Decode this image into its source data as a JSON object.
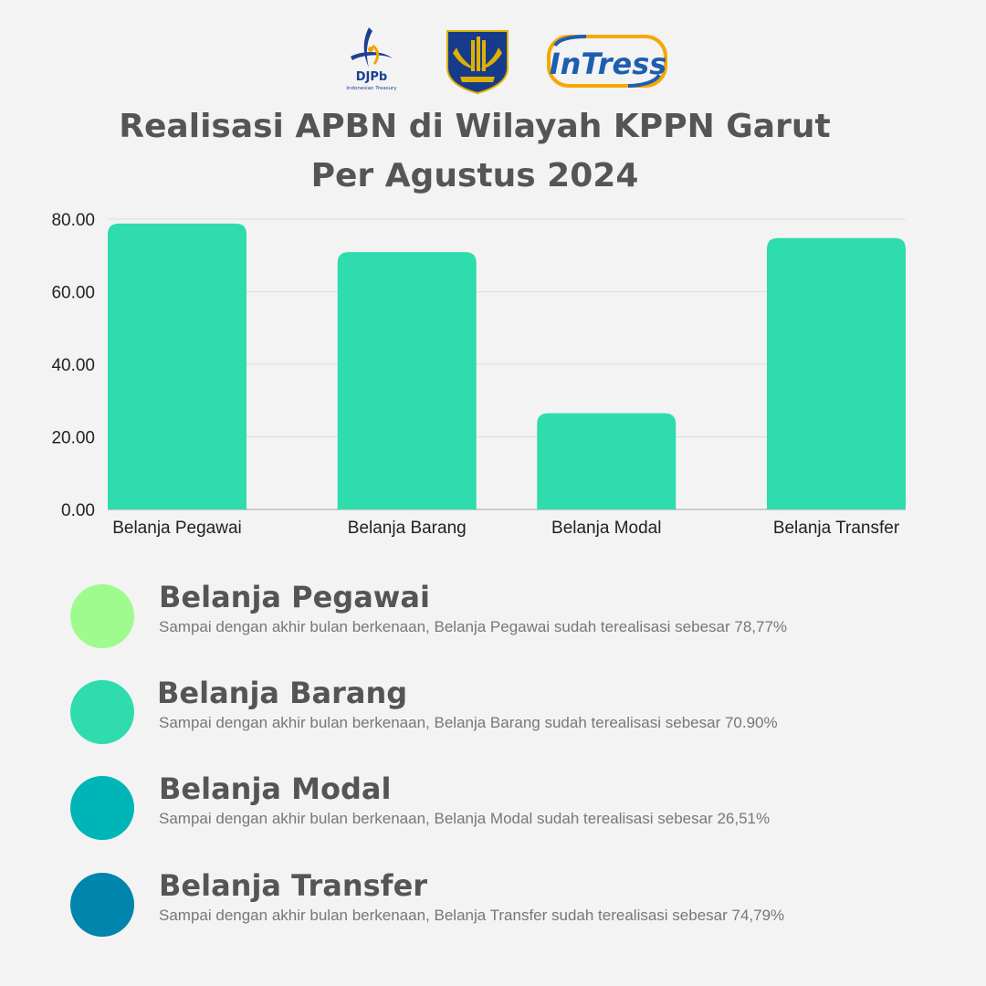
{
  "logos": {
    "djpb": {
      "name": "DJPb",
      "tagline": "Indonesian Treasury"
    },
    "kemenkeu": {
      "name": "Kementerian Keuangan"
    },
    "intress": {
      "name": "InTress"
    }
  },
  "title_line1": "Realisasi APBN di Wilayah KPPN Garut",
  "title_line2": "Per Agustus 2024",
  "chart_data": {
    "type": "bar",
    "title": "Realisasi APBN di Wilayah KPPN Garut Per Agustus 2024",
    "categories": [
      "Belanja Pegawai",
      "Belanja Barang",
      "Belanja Modal",
      "Belanja Transfer"
    ],
    "values": [
      78.77,
      70.9,
      26.51,
      74.79
    ],
    "ylim": [
      0,
      80
    ],
    "yticks": [
      "0.00",
      "20.00",
      "40.00",
      "60.00",
      "80.00"
    ],
    "ytick_values": [
      0,
      20,
      40,
      60,
      80
    ],
    "grid": true,
    "bar_color": "#2edcad"
  },
  "legend": [
    {
      "title": "Belanja Pegawai",
      "desc": "Sampai dengan akhir bulan berkenaan, Belanja Pegawai sudah terealisasi sebesar 78,77%",
      "color": "#a0fb8f"
    },
    {
      "title": "Belanja Barang",
      "desc": "Sampai dengan akhir bulan berkenaan, Belanja Barang sudah terealisasi sebesar 70.90%",
      "color": "#2edcad"
    },
    {
      "title": "Belanja Modal",
      "desc": "Sampai dengan akhir bulan berkenaan, Belanja Modal sudah terealisasi sebesar 26,51%",
      "color": "#00b5b8"
    },
    {
      "title": "Belanja Transfer",
      "desc": "Sampai dengan akhir bulan berkenaan, Belanja Transfer sudah terealisasi sebesar 74,79%",
      "color": "#0085ad"
    }
  ]
}
